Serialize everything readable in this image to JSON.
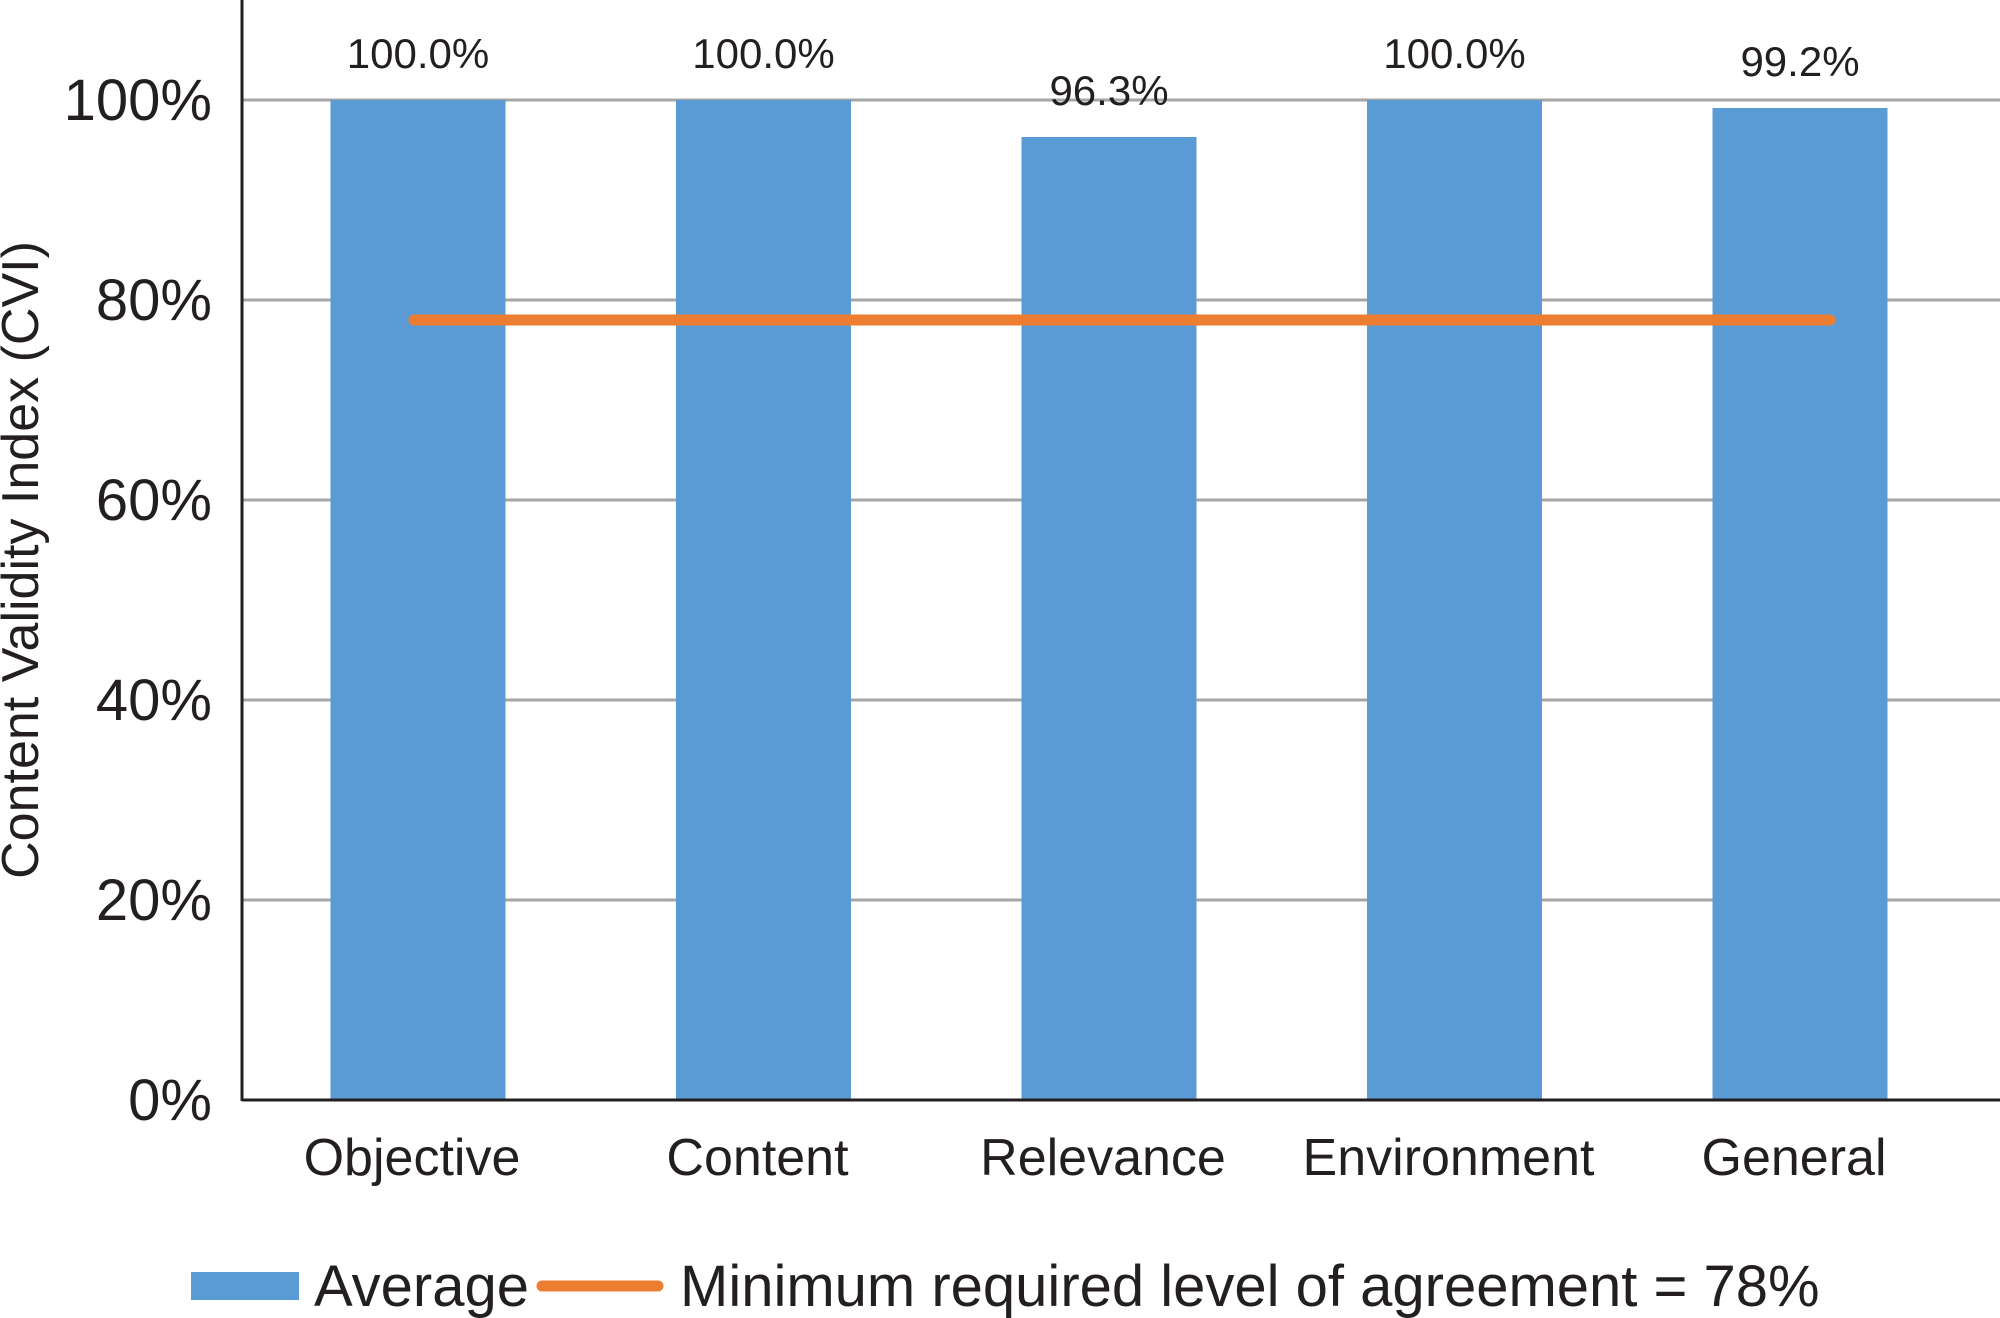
{
  "chart_data": {
    "type": "bar",
    "categories": [
      "Objective",
      "Content",
      "Relevance",
      "Environment",
      "General"
    ],
    "series": [
      {
        "name": "Average",
        "values": [
          100.0,
          100.0,
          96.3,
          100.0,
          99.2
        ],
        "data_labels": [
          "100.0%",
          "100.0%",
          "96.3%",
          "100.0%",
          "99.2%"
        ],
        "color": "#5b9bd5"
      }
    ],
    "reference_line": {
      "name": "Minimum required level of agreement = 78%",
      "value": 78,
      "color": "#ed7d31"
    },
    "title": "",
    "xlabel": "",
    "ylabel": "Content Validity Index (CVI)",
    "ylim": [
      0,
      100
    ],
    "yticks": [
      0,
      20,
      40,
      60,
      80,
      100
    ],
    "ytick_labels": [
      "0%",
      "20%",
      "40%",
      "60%",
      "80%",
      "100%"
    ],
    "grid": true,
    "grid_color": "#a6a6a6",
    "legend_position": "bottom"
  }
}
